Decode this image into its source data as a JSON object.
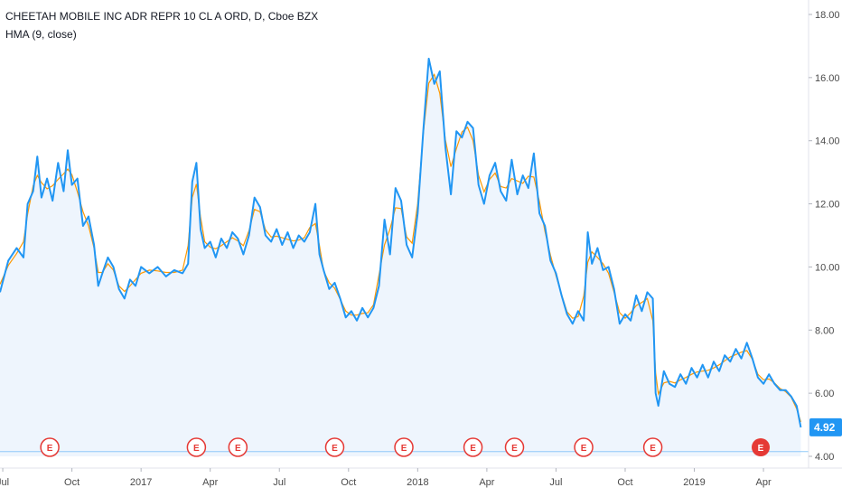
{
  "header": {
    "title": "CHEETAH MOBILE INC ADR REPR 10 CL A ORD, D, Cboe BZX",
    "indicator": "HMA (9, close)"
  },
  "colors": {
    "price_line": "#2196f3",
    "hma_line": "#ff9800",
    "area_fill": "#eef5fd",
    "earnings_marker": "#e53935",
    "last_price_badge": "#2196f3"
  },
  "chart_data": {
    "type": "line",
    "title": "CHEETAH MOBILE INC ADR REPR 10 CL A ORD, D, Cboe BZX",
    "xlabel": "",
    "ylabel": "",
    "ylim": [
      4.0,
      18.0
    ],
    "grid": false,
    "y_ticks": [
      "4.00",
      "6.00",
      "8.00",
      "10.00",
      "12.00",
      "14.00",
      "16.00",
      "18.00"
    ],
    "x_ticks": [
      {
        "label": "Jul",
        "x": 2016.5
      },
      {
        "label": "Oct",
        "x": 2016.75
      },
      {
        "label": "2017",
        "x": 2017.0
      },
      {
        "label": "Apr",
        "x": 2017.25
      },
      {
        "label": "Jul",
        "x": 2017.5
      },
      {
        "label": "Oct",
        "x": 2017.75
      },
      {
        "label": "2018",
        "x": 2018.0
      },
      {
        "label": "Apr",
        "x": 2018.25
      },
      {
        "label": "Jul",
        "x": 2018.5
      },
      {
        "label": "Oct",
        "x": 2018.75
      },
      {
        "label": "2019",
        "x": 2019.0
      },
      {
        "label": "Apr",
        "x": 2019.25
      }
    ],
    "x_range": [
      2016.49,
      2019.4
    ],
    "series": [
      {
        "values": [
          [
            2016.49,
            9.2
          ],
          [
            2016.52,
            10.2
          ],
          [
            2016.55,
            10.6
          ],
          [
            2016.575,
            10.3
          ],
          [
            2016.59,
            12.0
          ],
          [
            2016.61,
            12.4
          ],
          [
            2016.625,
            13.5
          ],
          [
            2016.64,
            12.2
          ],
          [
            2016.66,
            12.8
          ],
          [
            2016.68,
            12.1
          ],
          [
            2016.7,
            13.3
          ],
          [
            2016.72,
            12.4
          ],
          [
            2016.735,
            13.7
          ],
          [
            2016.75,
            12.6
          ],
          [
            2016.77,
            12.8
          ],
          [
            2016.79,
            11.3
          ],
          [
            2016.81,
            11.6
          ],
          [
            2016.83,
            10.7
          ],
          [
            2016.845,
            9.4
          ],
          [
            2016.86,
            9.8
          ],
          [
            2016.88,
            10.3
          ],
          [
            2016.9,
            10.0
          ],
          [
            2016.92,
            9.3
          ],
          [
            2016.94,
            9.0
          ],
          [
            2016.96,
            9.6
          ],
          [
            2016.98,
            9.4
          ],
          [
            2017.0,
            10.0
          ],
          [
            2017.03,
            9.8
          ],
          [
            2017.06,
            10.0
          ],
          [
            2017.09,
            9.7
          ],
          [
            2017.12,
            9.9
          ],
          [
            2017.15,
            9.8
          ],
          [
            2017.17,
            10.1
          ],
          [
            2017.185,
            12.7
          ],
          [
            2017.2,
            13.3
          ],
          [
            2017.215,
            11.2
          ],
          [
            2017.23,
            10.6
          ],
          [
            2017.25,
            10.8
          ],
          [
            2017.27,
            10.3
          ],
          [
            2017.29,
            10.9
          ],
          [
            2017.31,
            10.6
          ],
          [
            2017.33,
            11.1
          ],
          [
            2017.35,
            10.9
          ],
          [
            2017.37,
            10.4
          ],
          [
            2017.39,
            11.0
          ],
          [
            2017.41,
            12.2
          ],
          [
            2017.43,
            11.9
          ],
          [
            2017.45,
            11.0
          ],
          [
            2017.47,
            10.8
          ],
          [
            2017.49,
            11.2
          ],
          [
            2017.51,
            10.7
          ],
          [
            2017.53,
            11.1
          ],
          [
            2017.55,
            10.6
          ],
          [
            2017.57,
            11.0
          ],
          [
            2017.59,
            10.8
          ],
          [
            2017.61,
            11.1
          ],
          [
            2017.63,
            12.0
          ],
          [
            2017.645,
            10.4
          ],
          [
            2017.66,
            9.9
          ],
          [
            2017.68,
            9.3
          ],
          [
            2017.7,
            9.5
          ],
          [
            2017.72,
            9.0
          ],
          [
            2017.74,
            8.4
          ],
          [
            2017.76,
            8.6
          ],
          [
            2017.78,
            8.3
          ],
          [
            2017.8,
            8.7
          ],
          [
            2017.82,
            8.4
          ],
          [
            2017.84,
            8.7
          ],
          [
            2017.86,
            9.4
          ],
          [
            2017.88,
            11.5
          ],
          [
            2017.9,
            10.4
          ],
          [
            2017.92,
            12.5
          ],
          [
            2017.94,
            12.1
          ],
          [
            2017.96,
            10.7
          ],
          [
            2017.98,
            10.3
          ],
          [
            2018.0,
            11.7
          ],
          [
            2018.02,
            14.3
          ],
          [
            2018.04,
            16.6
          ],
          [
            2018.06,
            15.8
          ],
          [
            2018.08,
            16.2
          ],
          [
            2018.1,
            13.8
          ],
          [
            2018.12,
            12.3
          ],
          [
            2018.14,
            14.3
          ],
          [
            2018.16,
            14.1
          ],
          [
            2018.18,
            14.6
          ],
          [
            2018.2,
            14.4
          ],
          [
            2018.22,
            12.6
          ],
          [
            2018.24,
            12.0
          ],
          [
            2018.26,
            12.9
          ],
          [
            2018.28,
            13.3
          ],
          [
            2018.3,
            12.4
          ],
          [
            2018.32,
            12.1
          ],
          [
            2018.34,
            13.4
          ],
          [
            2018.36,
            12.3
          ],
          [
            2018.38,
            12.9
          ],
          [
            2018.4,
            12.5
          ],
          [
            2018.42,
            13.6
          ],
          [
            2018.44,
            11.7
          ],
          [
            2018.46,
            11.3
          ],
          [
            2018.48,
            10.2
          ],
          [
            2018.5,
            9.8
          ],
          [
            2018.52,
            9.1
          ],
          [
            2018.54,
            8.5
          ],
          [
            2018.56,
            8.2
          ],
          [
            2018.58,
            8.6
          ],
          [
            2018.6,
            8.3
          ],
          [
            2018.615,
            11.1
          ],
          [
            2018.63,
            10.1
          ],
          [
            2018.65,
            10.6
          ],
          [
            2018.67,
            9.9
          ],
          [
            2018.69,
            10.0
          ],
          [
            2018.71,
            9.3
          ],
          [
            2018.73,
            8.2
          ],
          [
            2018.75,
            8.5
          ],
          [
            2018.77,
            8.3
          ],
          [
            2018.79,
            9.1
          ],
          [
            2018.81,
            8.6
          ],
          [
            2018.83,
            9.2
          ],
          [
            2018.85,
            9.0
          ],
          [
            2018.86,
            6.0
          ],
          [
            2018.87,
            5.6
          ],
          [
            2018.89,
            6.7
          ],
          [
            2018.91,
            6.3
          ],
          [
            2018.93,
            6.2
          ],
          [
            2018.95,
            6.6
          ],
          [
            2018.97,
            6.3
          ],
          [
            2018.99,
            6.8
          ],
          [
            2019.01,
            6.5
          ],
          [
            2019.03,
            6.9
          ],
          [
            2019.05,
            6.5
          ],
          [
            2019.07,
            7.0
          ],
          [
            2019.09,
            6.7
          ],
          [
            2019.11,
            7.2
          ],
          [
            2019.13,
            7.0
          ],
          [
            2019.15,
            7.4
          ],
          [
            2019.17,
            7.1
          ],
          [
            2019.19,
            7.6
          ],
          [
            2019.21,
            7.1
          ],
          [
            2019.23,
            6.5
          ],
          [
            2019.25,
            6.3
          ],
          [
            2019.27,
            6.6
          ],
          [
            2019.29,
            6.3
          ],
          [
            2019.31,
            6.1
          ],
          [
            2019.33,
            6.1
          ],
          [
            2019.35,
            5.9
          ],
          [
            2019.37,
            5.6
          ],
          [
            2019.385,
            4.92
          ]
        ]
      }
    ],
    "last_price": "4.92",
    "earnings_markers": [
      {
        "label": "E",
        "x": 2016.67,
        "highlighted": false
      },
      {
        "label": "E",
        "x": 2017.2,
        "highlighted": false
      },
      {
        "label": "E",
        "x": 2017.35,
        "highlighted": false
      },
      {
        "label": "E",
        "x": 2017.7,
        "highlighted": false
      },
      {
        "label": "E",
        "x": 2017.95,
        "highlighted": false
      },
      {
        "label": "E",
        "x": 2018.2,
        "highlighted": false
      },
      {
        "label": "E",
        "x": 2018.35,
        "highlighted": false
      },
      {
        "label": "E",
        "x": 2018.6,
        "highlighted": false
      },
      {
        "label": "E",
        "x": 2018.85,
        "highlighted": false
      },
      {
        "label": "E",
        "x": 2019.24,
        "highlighted": true
      }
    ],
    "baseline_value": 4.15
  }
}
